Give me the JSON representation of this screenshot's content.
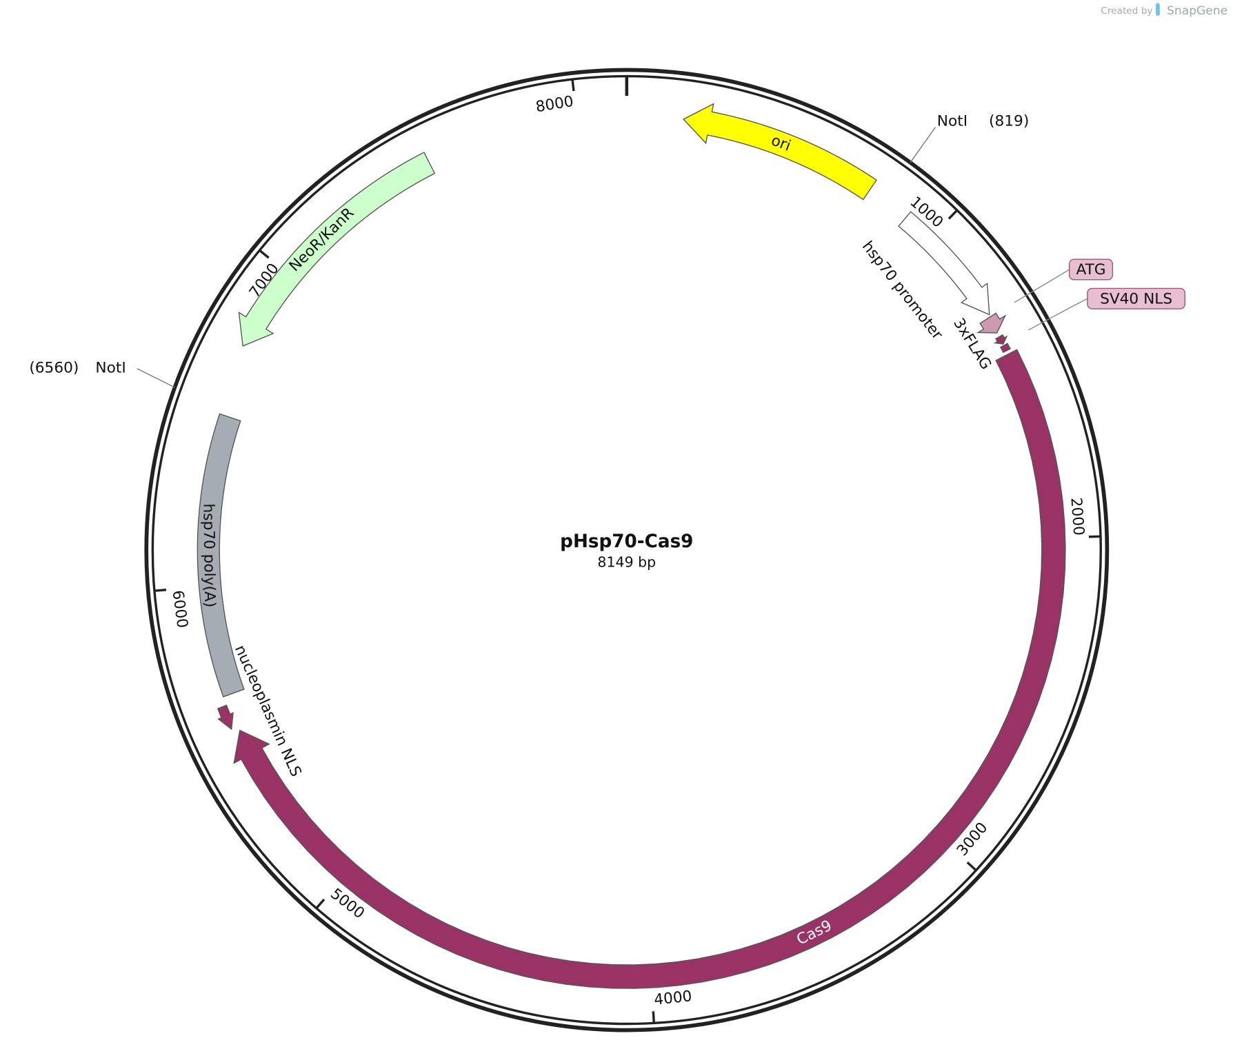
{
  "title": "pHsp70-Cas9",
  "length": {
    "value": 8149,
    "label": "8149 bp"
  },
  "ticks": [
    1000,
    2000,
    3000,
    4000,
    5000,
    6000,
    7000,
    8000
  ],
  "features": [
    {
      "label": "ori",
      "color": "#ffff00"
    },
    {
      "label": "hsp70 promoter",
      "color": "#ffffff"
    },
    {
      "label": "ATG",
      "color": "#cc99b2"
    },
    {
      "label": "3xFLAG",
      "color": "#993366"
    },
    {
      "label": "SV40 NLS",
      "color": "#993366"
    },
    {
      "label": "Cas9",
      "color": "#993366"
    },
    {
      "label": "nucleoplasmin NLS",
      "color": "#993366"
    },
    {
      "label": "hsp70 poly(A)",
      "color": "#a6acb3"
    },
    {
      "label": "NeoR/KanR",
      "color": "#ccffcc"
    }
  ],
  "sites": [
    {
      "name": "NotI",
      "position": {
        "value": 819,
        "label": "(819)"
      }
    },
    {
      "name": "NotI",
      "position": {
        "value": 6560,
        "label": "(6560)"
      }
    }
  ],
  "credit": {
    "prefix": "Created by",
    "brand": "SnapGene"
  }
}
